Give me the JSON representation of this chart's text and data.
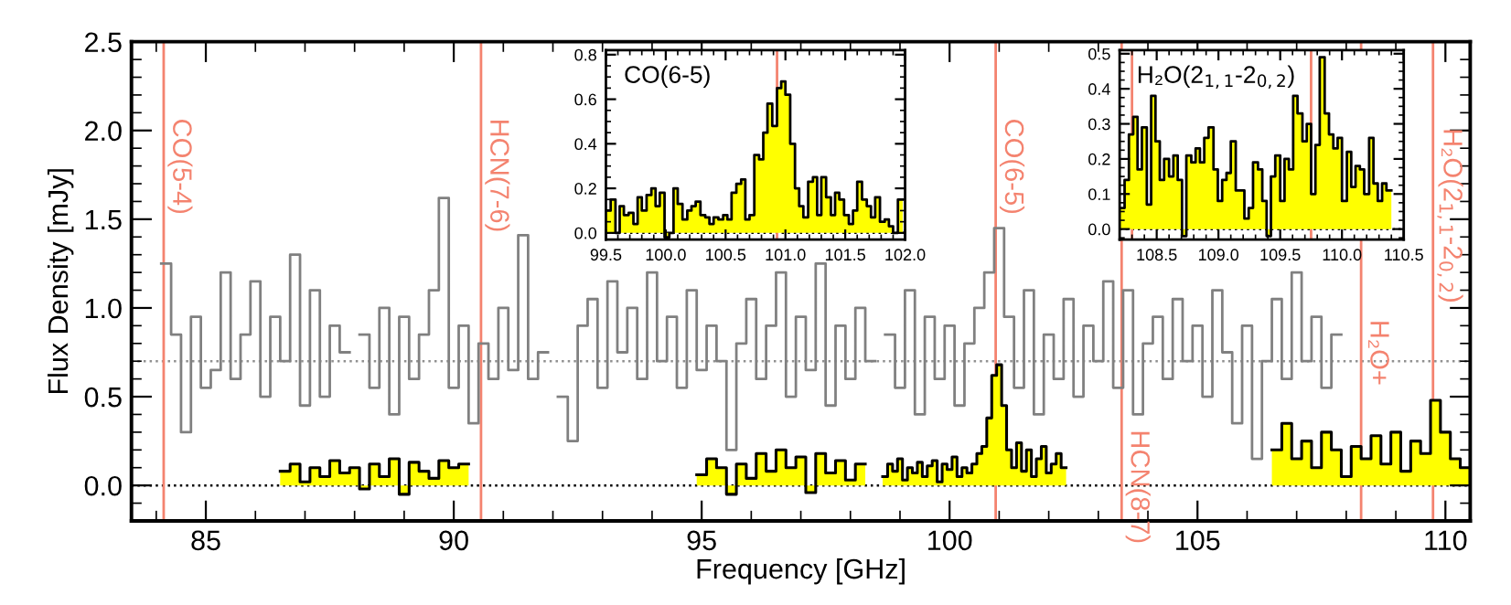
{
  "chart_data": [
    {
      "type": "area",
      "xlabel": "Frequency [GHz]",
      "ylabel": "Flux Density [mJy]",
      "xlim": [
        83.5,
        110.5
      ],
      "ylim": [
        -0.2,
        2.5
      ],
      "xticks": [
        85,
        90,
        95,
        100,
        105,
        110
      ],
      "yticks": [
        {
          "value": 0,
          "label": "0.0"
        },
        0.5,
        {
          "value": 1,
          "label": "1.0"
        },
        1.5,
        {
          "value": 2,
          "label": "2.0"
        },
        2.5
      ],
      "grid": false,
      "series": [
        {
          "type": "step",
          "color": "#808080",
          "x": [
            84.2,
            84.4,
            84.6,
            84.8,
            85.0,
            85.2,
            85.4,
            85.6,
            85.8,
            86.0,
            86.2,
            86.4,
            86.6,
            86.8,
            87.0,
            87.2,
            87.4,
            87.6,
            87.8,
            88.0,
            88.2,
            88.4,
            88.6,
            88.8,
            89.0,
            89.2,
            89.4,
            89.6,
            89.8,
            90.0,
            90.2,
            90.4,
            90.6,
            90.8,
            91.0,
            91.2,
            91.4,
            91.6,
            91.8,
            92.0,
            92.2,
            92.4,
            92.6,
            92.8,
            93.0,
            93.2,
            93.4,
            93.6,
            93.8,
            94.0,
            94.2,
            94.4,
            94.6,
            94.8,
            95.0,
            95.2,
            95.4,
            95.6,
            95.8,
            96.0,
            96.2,
            96.4,
            96.6,
            96.8,
            97.0,
            97.2,
            97.4,
            97.6,
            97.8,
            98.0,
            98.2,
            98.4,
            98.6,
            98.8,
            99.0,
            99.2,
            99.4,
            99.6,
            99.8,
            100.0,
            100.2,
            100.4,
            100.6,
            100.8,
            101.0,
            101.2,
            101.4,
            101.6,
            101.8,
            102.0,
            102.2,
            102.4,
            102.6,
            102.8,
            103.0,
            103.2,
            103.4,
            103.6,
            103.8,
            104.0,
            104.2,
            104.4,
            104.6,
            104.8,
            105.0,
            105.2,
            105.4,
            105.6,
            105.8,
            106.0,
            106.2,
            106.4,
            106.6,
            106.8,
            107.0,
            107.2,
            107.4,
            107.6,
            107.8
          ],
          "values": [
            1.25,
            0.85,
            0.3,
            0.95,
            0.55,
            0.65,
            1.2,
            0.6,
            0.85,
            1.15,
            0.5,
            0.95,
            0.7,
            1.3,
            0.45,
            1.1,
            0.5,
            0.9,
            0.75,
            null,
            0.85,
            0.55,
            1.0,
            0.4,
            0.95,
            0.6,
            0.85,
            1.1,
            1.62,
            0.55,
            0.9,
            0.35,
            0.8,
            0.6,
            1.0,
            0.65,
            1.41,
            0.6,
            0.75,
            null,
            0.5,
            0.25,
            0.9,
            1.05,
            0.55,
            1.15,
            0.75,
            1.0,
            0.6,
            1.2,
            0.7,
            0.95,
            0.55,
            1.1,
            0.65,
            0.9,
            0.7,
            0.2,
            0.8,
            1.05,
            0.6,
            0.9,
            1.2,
            0.5,
            0.95,
            0.65,
            1.25,
            0.45,
            0.9,
            0.6,
            1.0,
            0.7,
            null,
            0.85,
            0.55,
            1.1,
            0.4,
            0.95,
            0.6,
            0.9,
            0.45,
            0.8,
            1.0,
            1.2,
            1.45,
            0.95,
            0.55,
            1.1,
            0.4,
            0.85,
            0.6,
            1.05,
            0.5,
            0.9,
            0.7,
            1.15,
            0.55,
            1.1,
            0.4,
            0.8,
            0.95,
            0.6,
            1.05,
            0.7,
            0.9,
            0.5,
            1.1,
            0.75,
            0.35,
            0.9,
            0.15,
            0.7,
            1.05,
            0.6,
            1.2,
            0.7,
            0.95,
            0.55,
            0.85
          ]
        },
        {
          "color": "#ffff00",
          "x": [
            86.6,
            86.8,
            87.0,
            87.2,
            87.4,
            87.6,
            87.8,
            88.0,
            88.2,
            88.4,
            88.6,
            88.8,
            89.0,
            89.2,
            89.4,
            89.6,
            89.8,
            90.0,
            90.2,
            92.6,
            95.0,
            95.2,
            95.4,
            95.6,
            95.8,
            96.0,
            96.2,
            96.4,
            96.6,
            96.8,
            97.0,
            97.2,
            97.4,
            97.6,
            97.8,
            98.0,
            98.2,
            98.5,
            98.7,
            98.8,
            98.9,
            99.0,
            99.1,
            99.2,
            99.3,
            99.4,
            99.5,
            99.6,
            99.7,
            99.8,
            99.9,
            100.0,
            100.1,
            100.2,
            100.3,
            100.4,
            100.5,
            100.6,
            100.7,
            100.8,
            100.9,
            101.0,
            101.1,
            101.2,
            101.3,
            101.4,
            101.5,
            101.6,
            101.7,
            101.8,
            101.9,
            102.0,
            102.1,
            102.2,
            102.3,
            104.5,
            106.6,
            106.8,
            107.0,
            107.2,
            107.4,
            107.6,
            107.8,
            108.0,
            108.2,
            108.4,
            108.6,
            108.8,
            109.0,
            109.2,
            109.4,
            109.6,
            109.8,
            110.0,
            110.2,
            110.4
          ],
          "values": [
            0.08,
            0.12,
            0.02,
            0.1,
            0.05,
            0.14,
            0.07,
            0.1,
            -0.02,
            0.12,
            0.05,
            0.15,
            -0.05,
            0.13,
            0.08,
            0.04,
            0.14,
            0.1,
            0.12,
            null,
            0.06,
            0.15,
            0.1,
            -0.05,
            0.12,
            0.04,
            0.18,
            0.08,
            0.2,
            0.1,
            0.16,
            -0.04,
            0.18,
            0.07,
            0.14,
            0.03,
            0.12,
            null,
            0.05,
            0.12,
            0.08,
            0.15,
            0.03,
            0.1,
            0.07,
            0.13,
            0.05,
            0.11,
            0.14,
            0.02,
            0.12,
            0.09,
            0.16,
            0.05,
            0.1,
            0.07,
            0.12,
            0.18,
            0.22,
            0.38,
            0.62,
            0.68,
            0.45,
            0.2,
            0.1,
            0.24,
            0.08,
            0.2,
            0.05,
            0.15,
            0.22,
            0.07,
            0.12,
            0.18,
            0.1,
            null,
            0.2,
            0.35,
            0.15,
            0.25,
            0.1,
            0.3,
            0.2,
            0.05,
            0.22,
            0.15,
            0.28,
            0.12,
            0.3,
            0.08,
            0.25,
            0.18,
            0.48,
            0.3,
            0.15,
            0.1
          ]
        }
      ],
      "ref_lines": [
        {
          "axis": "y",
          "value": 0,
          "color": "#000000",
          "line_style": "dotted"
        },
        {
          "axis": "y",
          "value": 0.7,
          "color": "#909090",
          "line_style": "dotted"
        },
        {
          "axis": "x",
          "value": 84.15,
          "label": "CO(5-4)",
          "color": "#f4836f"
        },
        {
          "axis": "x",
          "value": 90.55,
          "label": "HCN(7-6)",
          "color": "#f4836f"
        },
        {
          "axis": "x",
          "value": 100.93,
          "label": "CO(6-5)",
          "color": "#f4836f"
        },
        {
          "axis": "x",
          "value": 103.47,
          "label": "HCN(8-7)",
          "color": "#f4836f"
        },
        {
          "axis": "x",
          "value": 108.3,
          "label": "H₂O+",
          "color": "#f4836f"
        },
        {
          "axis": "x",
          "value": 109.75,
          "label": "H₂O(2$_{1,1}$-2$_{0,2}$)",
          "color": "#f4836f"
        }
      ]
    },
    {
      "type": "area",
      "title": "CO(6-5)",
      "xlim": [
        99.5,
        102.0
      ],
      "ylim": [
        -0.03,
        0.82
      ],
      "xticks": [
        99.5,
        {
          "value": 100,
          "label": "100.0"
        },
        100.5,
        {
          "value": 101,
          "label": "101.0"
        },
        101.5,
        {
          "value": 102,
          "label": "102.0"
        }
      ],
      "yticks": [
        {
          "value": 0,
          "label": "0.0"
        },
        0.2,
        0.4,
        0.6,
        0.8
      ],
      "series": [
        {
          "color": "#ffff00",
          "x": [
            99.52,
            99.56,
            99.6,
            99.63,
            99.67,
            99.71,
            99.75,
            99.78,
            99.82,
            99.86,
            99.9,
            99.93,
            99.97,
            100.01,
            100.05,
            100.08,
            100.12,
            100.16,
            100.2,
            100.23,
            100.27,
            100.31,
            100.35,
            100.38,
            100.42,
            100.46,
            100.5,
            100.53,
            100.57,
            100.61,
            100.65,
            100.68,
            100.72,
            100.76,
            100.8,
            100.83,
            100.87,
            100.91,
            100.95,
            100.98,
            101.02,
            101.06,
            101.1,
            101.13,
            101.17,
            101.21,
            101.25,
            101.28,
            101.32,
            101.36,
            101.4,
            101.43,
            101.47,
            101.51,
            101.55,
            101.58,
            101.62,
            101.66,
            101.7,
            101.73,
            101.77,
            101.81,
            101.85,
            101.88,
            101.92,
            101.96
          ],
          "values": [
            0.1,
            0.15,
            0.0,
            0.12,
            0.08,
            0.09,
            0.04,
            0.16,
            0.1,
            0.17,
            0.2,
            0.12,
            0.18,
            -0.02,
            0.0,
            0.2,
            0.13,
            0.06,
            0.1,
            0.12,
            0.14,
            0.08,
            0.07,
            0.04,
            0.07,
            0.06,
            0.08,
            0.06,
            0.18,
            0.22,
            0.24,
            0.06,
            0.08,
            0.35,
            0.33,
            0.45,
            0.58,
            0.48,
            0.65,
            0.68,
            0.62,
            0.4,
            0.2,
            0.12,
            0.07,
            0.23,
            0.25,
            0.08,
            0.25,
            0.16,
            0.08,
            0.18,
            0.15,
            0.08,
            0.04,
            0.1,
            0.23,
            0.15,
            0.12,
            0.07,
            0.16,
            0.05,
            0.06,
            0.03,
            0.0,
            0.15
          ]
        }
      ],
      "ref_lines": [
        {
          "axis": "y",
          "value": 0,
          "color": "#000000",
          "line_style": "dotted"
        },
        {
          "axis": "x",
          "value": 100.93,
          "color": "#f4836f"
        }
      ]
    },
    {
      "type": "area",
      "title": "H₂O(2$_{1,1}$-2$_{0,2}$)",
      "xlim": [
        108.2,
        110.5
      ],
      "ylim": [
        -0.03,
        0.51
      ],
      "xticks": [
        108.5,
        {
          "value": 109,
          "label": "109.0"
        },
        109.5,
        {
          "value": 110,
          "label": "110.0"
        },
        110.5
      ],
      "yticks": [
        {
          "value": 0,
          "label": "0.0"
        },
        0.1,
        0.2,
        0.3,
        0.4,
        0.5
      ],
      "series": [
        {
          "color": "#ffff00",
          "x": [
            108.22,
            108.26,
            108.29,
            108.33,
            108.36,
            108.4,
            108.44,
            108.47,
            108.51,
            108.54,
            108.58,
            108.62,
            108.65,
            108.69,
            108.72,
            108.76,
            108.8,
            108.83,
            108.87,
            108.9,
            108.94,
            108.98,
            109.01,
            109.05,
            109.08,
            109.12,
            109.16,
            109.19,
            109.23,
            109.26,
            109.3,
            109.34,
            109.37,
            109.41,
            109.44,
            109.48,
            109.52,
            109.55,
            109.59,
            109.62,
            109.66,
            109.7,
            109.73,
            109.77,
            109.8,
            109.84,
            109.88,
            109.91,
            109.95,
            109.98,
            110.02,
            110.06,
            110.09,
            110.13,
            110.16,
            110.2,
            110.24,
            110.27,
            110.31,
            110.34,
            110.38
          ],
          "values": [
            0.06,
            0.14,
            0.27,
            0.32,
            0.17,
            0.29,
            0.07,
            0.38,
            0.25,
            0.14,
            0.2,
            0.15,
            0.21,
            0.14,
            -0.02,
            0.21,
            0.19,
            0.23,
            0.19,
            0.26,
            0.29,
            0.17,
            0.08,
            0.14,
            0.16,
            0.25,
            0.11,
            0.11,
            0.03,
            0.06,
            0.19,
            0.17,
            0.08,
            -0.02,
            0.15,
            0.21,
            0.08,
            0.2,
            0.17,
            0.38,
            0.33,
            0.25,
            0.3,
            0.1,
            0.24,
            0.49,
            0.33,
            0.27,
            0.23,
            0.26,
            0.08,
            0.22,
            0.12,
            0.18,
            0.17,
            0.1,
            0.26,
            0.13,
            0.08,
            0.13,
            0.11
          ]
        }
      ],
      "ref_lines": [
        {
          "axis": "y",
          "value": 0,
          "color": "#000000",
          "line_style": "dotted"
        },
        {
          "axis": "x",
          "value": 108.3,
          "color": "#f4836f"
        },
        {
          "axis": "x",
          "value": 109.75,
          "color": "#f4836f"
        }
      ]
    }
  ]
}
